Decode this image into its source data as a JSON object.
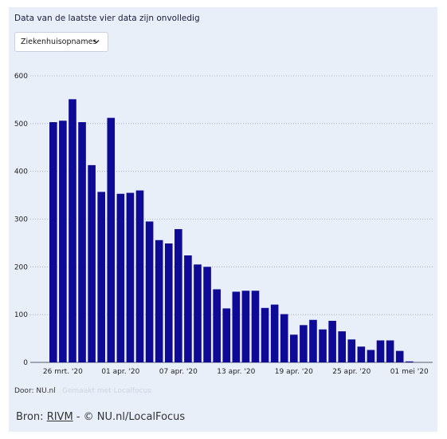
{
  "notice": "Data van de laatste vier data zijn onvolledig",
  "dropdown": {
    "selected": "Ziekenhuisopnames"
  },
  "footer": {
    "author": "Door: NU.nl",
    "made_with": "Gemaakt met Localfocus",
    "source_prefix": "Bron: ",
    "source_link": "RIVM",
    "source_suffix": " - © NU.nl/LocalFocus"
  },
  "colors": {
    "bar": "#0e0a96",
    "background": "#e9eff9",
    "grid": "#9aa3b5"
  },
  "chart_data": {
    "type": "bar",
    "title": "",
    "xlabel": "",
    "ylabel": "",
    "ylim": [
      0,
      600
    ],
    "yticks": [
      0,
      100,
      200,
      300,
      400,
      500,
      600
    ],
    "grid": true,
    "values": [
      503,
      506,
      551,
      503,
      413,
      357,
      512,
      353,
      355,
      360,
      295,
      256,
      249,
      279,
      224,
      205,
      200,
      153,
      113,
      148,
      150,
      150,
      114,
      121,
      101,
      58,
      78,
      89,
      69,
      87,
      65,
      48,
      33,
      26,
      46,
      46,
      24,
      2
    ],
    "x_tick_labels": [
      {
        "index": 1,
        "label": "26 mrt. '20"
      },
      {
        "index": 7,
        "label": "01 apr. '20"
      },
      {
        "index": 13,
        "label": "07 apr. '20"
      },
      {
        "index": 19,
        "label": "13 apr. '20"
      },
      {
        "index": 25,
        "label": "19 apr. '20"
      },
      {
        "index": 31,
        "label": "25 apr. '20"
      },
      {
        "index": 37,
        "label": "01 mei '20"
      }
    ]
  }
}
